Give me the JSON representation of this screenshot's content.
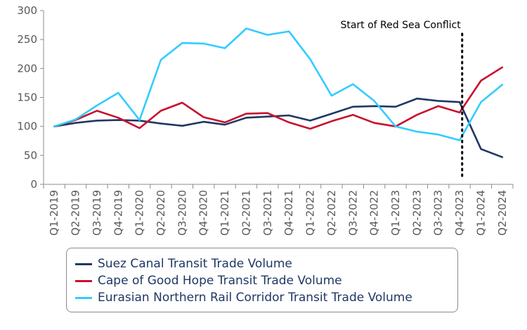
{
  "chart_data": {
    "type": "line",
    "categories": [
      "Q1-2019",
      "Q2-2019",
      "Q3-2019",
      "Q4-2019",
      "Q1-2020",
      "Q2-2020",
      "Q3-2020",
      "Q4-2020",
      "Q1-2021",
      "Q2-2021",
      "Q3-2021",
      "Q4-2021",
      "Q1-2022",
      "Q2-2022",
      "Q3-2022",
      "Q4-2022",
      "Q1-2023",
      "Q2-2023",
      "Q3-2023",
      "Q4-2023",
      "Q1-2024",
      "Q2-2024"
    ],
    "ylim": [
      0,
      300
    ],
    "yticks": [
      "0",
      "50",
      "100",
      "150",
      "200",
      "250",
      "300"
    ],
    "grid": false,
    "legend_position": "bottom",
    "annotation": {
      "text": "Start of Red Sea Conflict",
      "at_category": "Q4-2023"
    },
    "series": [
      {
        "name": "Suez Canal Transit Trade Volume",
        "color": "#1f3864",
        "values": [
          100,
          106,
          110,
          111,
          110,
          105,
          101,
          108,
          103,
          115,
          117,
          119,
          110,
          122,
          134,
          135,
          134,
          148,
          144,
          142,
          61,
          47
        ]
      },
      {
        "name": "Cape of Good Hope Transit Trade Volume",
        "color": "#c8102e",
        "values": [
          100,
          111,
          127,
          115,
          97,
          127,
          141,
          116,
          107,
          122,
          123,
          107,
          96,
          109,
          120,
          106,
          100,
          120,
          135,
          124,
          179,
          202
        ]
      },
      {
        "name": "Eurasian Northern Rail Corridor Transit Trade Volume",
        "color": "#33ccff",
        "values": [
          100,
          112,
          136,
          158,
          111,
          215,
          244,
          243,
          235,
          269,
          258,
          264,
          216,
          153,
          173,
          144,
          100,
          91,
          86,
          76,
          142,
          172
        ]
      }
    ]
  }
}
